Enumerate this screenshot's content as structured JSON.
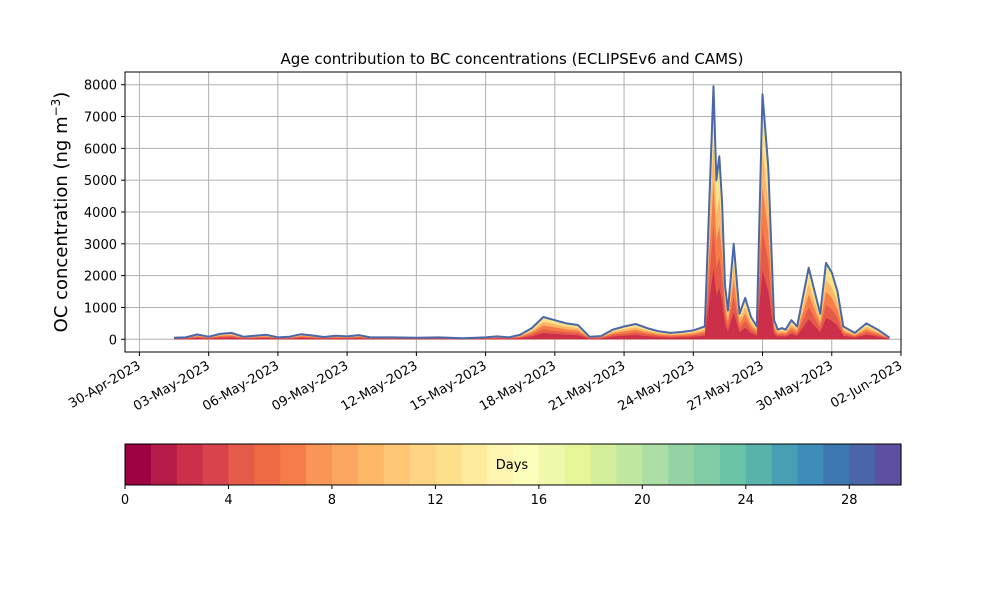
{
  "chart_data": {
    "type": "area",
    "title": "Age contribution to BC concentrations (ECLIPSEv6 and CAMS)",
    "ylabel": "OC concentration (ng m",
    "ylabel_superscript": "−3",
    "ylabel_close": ")",
    "xlabel": "",
    "ylim": [
      -400,
      8400
    ],
    "xlim": [
      "2023-04-29T09:00",
      "2023-06-02T00:00"
    ],
    "yticks": [
      0,
      1000,
      2000,
      3000,
      4000,
      5000,
      6000,
      7000,
      8000
    ],
    "ytick_labels": [
      "0",
      "1000",
      "2000",
      "3000",
      "4000",
      "5000",
      "6000",
      "7000",
      "8000"
    ],
    "xticks": [
      "2023-04-30",
      "2023-05-03",
      "2023-05-06",
      "2023-05-09",
      "2023-05-12",
      "2023-05-15",
      "2023-05-18",
      "2023-05-21",
      "2023-05-24",
      "2023-05-27",
      "2023-05-30",
      "2023-06-02"
    ],
    "xtick_labels": [
      "30-Apr-2023",
      "03-May-2023",
      "06-May-2023",
      "09-May-2023",
      "12-May-2023",
      "15-May-2023",
      "18-May-2023",
      "21-May-2023",
      "24-May-2023",
      "27-May-2023",
      "30-May-2023",
      "02-Jun-2023"
    ],
    "grid": true,
    "total_series": {
      "x": [
        "2023-05-01T12:00",
        "2023-05-02T00:00",
        "2023-05-02T12:00",
        "2023-05-03T00:00",
        "2023-05-03T12:00",
        "2023-05-04T00:00",
        "2023-05-04T12:00",
        "2023-05-05T00:00",
        "2023-05-05T12:00",
        "2023-05-06T00:00",
        "2023-05-06T12:00",
        "2023-05-07T00:00",
        "2023-05-07T12:00",
        "2023-05-08T00:00",
        "2023-05-08T12:00",
        "2023-05-09T00:00",
        "2023-05-09T12:00",
        "2023-05-10T00:00",
        "2023-05-11T00:00",
        "2023-05-12T00:00",
        "2023-05-13T00:00",
        "2023-05-14T00:00",
        "2023-05-15T00:00",
        "2023-05-15T12:00",
        "2023-05-16T00:00",
        "2023-05-16T12:00",
        "2023-05-17T00:00",
        "2023-05-17T12:00",
        "2023-05-18T00:00",
        "2023-05-18T12:00",
        "2023-05-19T00:00",
        "2023-05-19T12:00",
        "2023-05-20T00:00",
        "2023-05-20T12:00",
        "2023-05-21T00:00",
        "2023-05-21T12:00",
        "2023-05-22T00:00",
        "2023-05-22T12:00",
        "2023-05-23T00:00",
        "2023-05-23T12:00",
        "2023-05-24T00:00",
        "2023-05-24T12:00",
        "2023-05-24T21:00",
        "2023-05-25T00:00",
        "2023-05-25T03:00",
        "2023-05-25T06:00",
        "2023-05-25T09:00",
        "2023-05-25T12:00",
        "2023-05-25T18:00",
        "2023-05-26T00:00",
        "2023-05-26T06:00",
        "2023-05-26T12:00",
        "2023-05-26T18:00",
        "2023-05-27T00:00",
        "2023-05-27T06:00",
        "2023-05-27T12:00",
        "2023-05-27T16:00",
        "2023-05-27T20:00",
        "2023-05-28T00:00",
        "2023-05-28T06:00",
        "2023-05-28T12:00",
        "2023-05-29T00:00",
        "2023-05-29T12:00",
        "2023-05-29T18:00",
        "2023-05-30T00:00",
        "2023-05-30T06:00",
        "2023-05-30T12:00",
        "2023-05-31T00:00",
        "2023-05-31T12:00",
        "2023-06-01T00:00",
        "2023-06-01T12:00"
      ],
      "y": [
        50,
        60,
        150,
        80,
        170,
        200,
        80,
        110,
        140,
        60,
        80,
        160,
        120,
        70,
        110,
        90,
        130,
        60,
        60,
        50,
        60,
        30,
        60,
        90,
        60,
        140,
        350,
        700,
        600,
        500,
        450,
        80,
        100,
        300,
        400,
        480,
        350,
        250,
        200,
        230,
        280,
        400,
        7950,
        5000,
        5750,
        4300,
        1700,
        900,
        3000,
        800,
        1300,
        700,
        400,
        7700,
        5400,
        600,
        300,
        350,
        300,
        600,
        400,
        2250,
        800,
        2400,
        2100,
        1500,
        400,
        200,
        500,
        300,
        50
      ]
    },
    "colorbar": {
      "label": "Days",
      "min": 0,
      "max": 30,
      "step": 1,
      "ticks": [
        0,
        4,
        8,
        12,
        16,
        20,
        24,
        28
      ],
      "colormap": "Spectral",
      "colors": [
        "#9e0142",
        "#b61a48",
        "#cc2f4a",
        "#d8434e",
        "#e55b4a",
        "#ed6a45",
        "#f67d4a",
        "#f99555",
        "#fca75f",
        "#fdb767",
        "#fec574",
        "#fed383",
        "#fee08b",
        "#feeb9c",
        "#fff5b0",
        "#fbfdba",
        "#f0f8aa",
        "#e6f598",
        "#d3ee9b",
        "#c0e7a0",
        "#abdda4",
        "#94d4a4",
        "#80cca5",
        "#6bc3a5",
        "#58b3ab",
        "#479fb3",
        "#3d8cb9",
        "#3d78b1",
        "#4b65ab",
        "#5e4fa2"
      ]
    }
  }
}
